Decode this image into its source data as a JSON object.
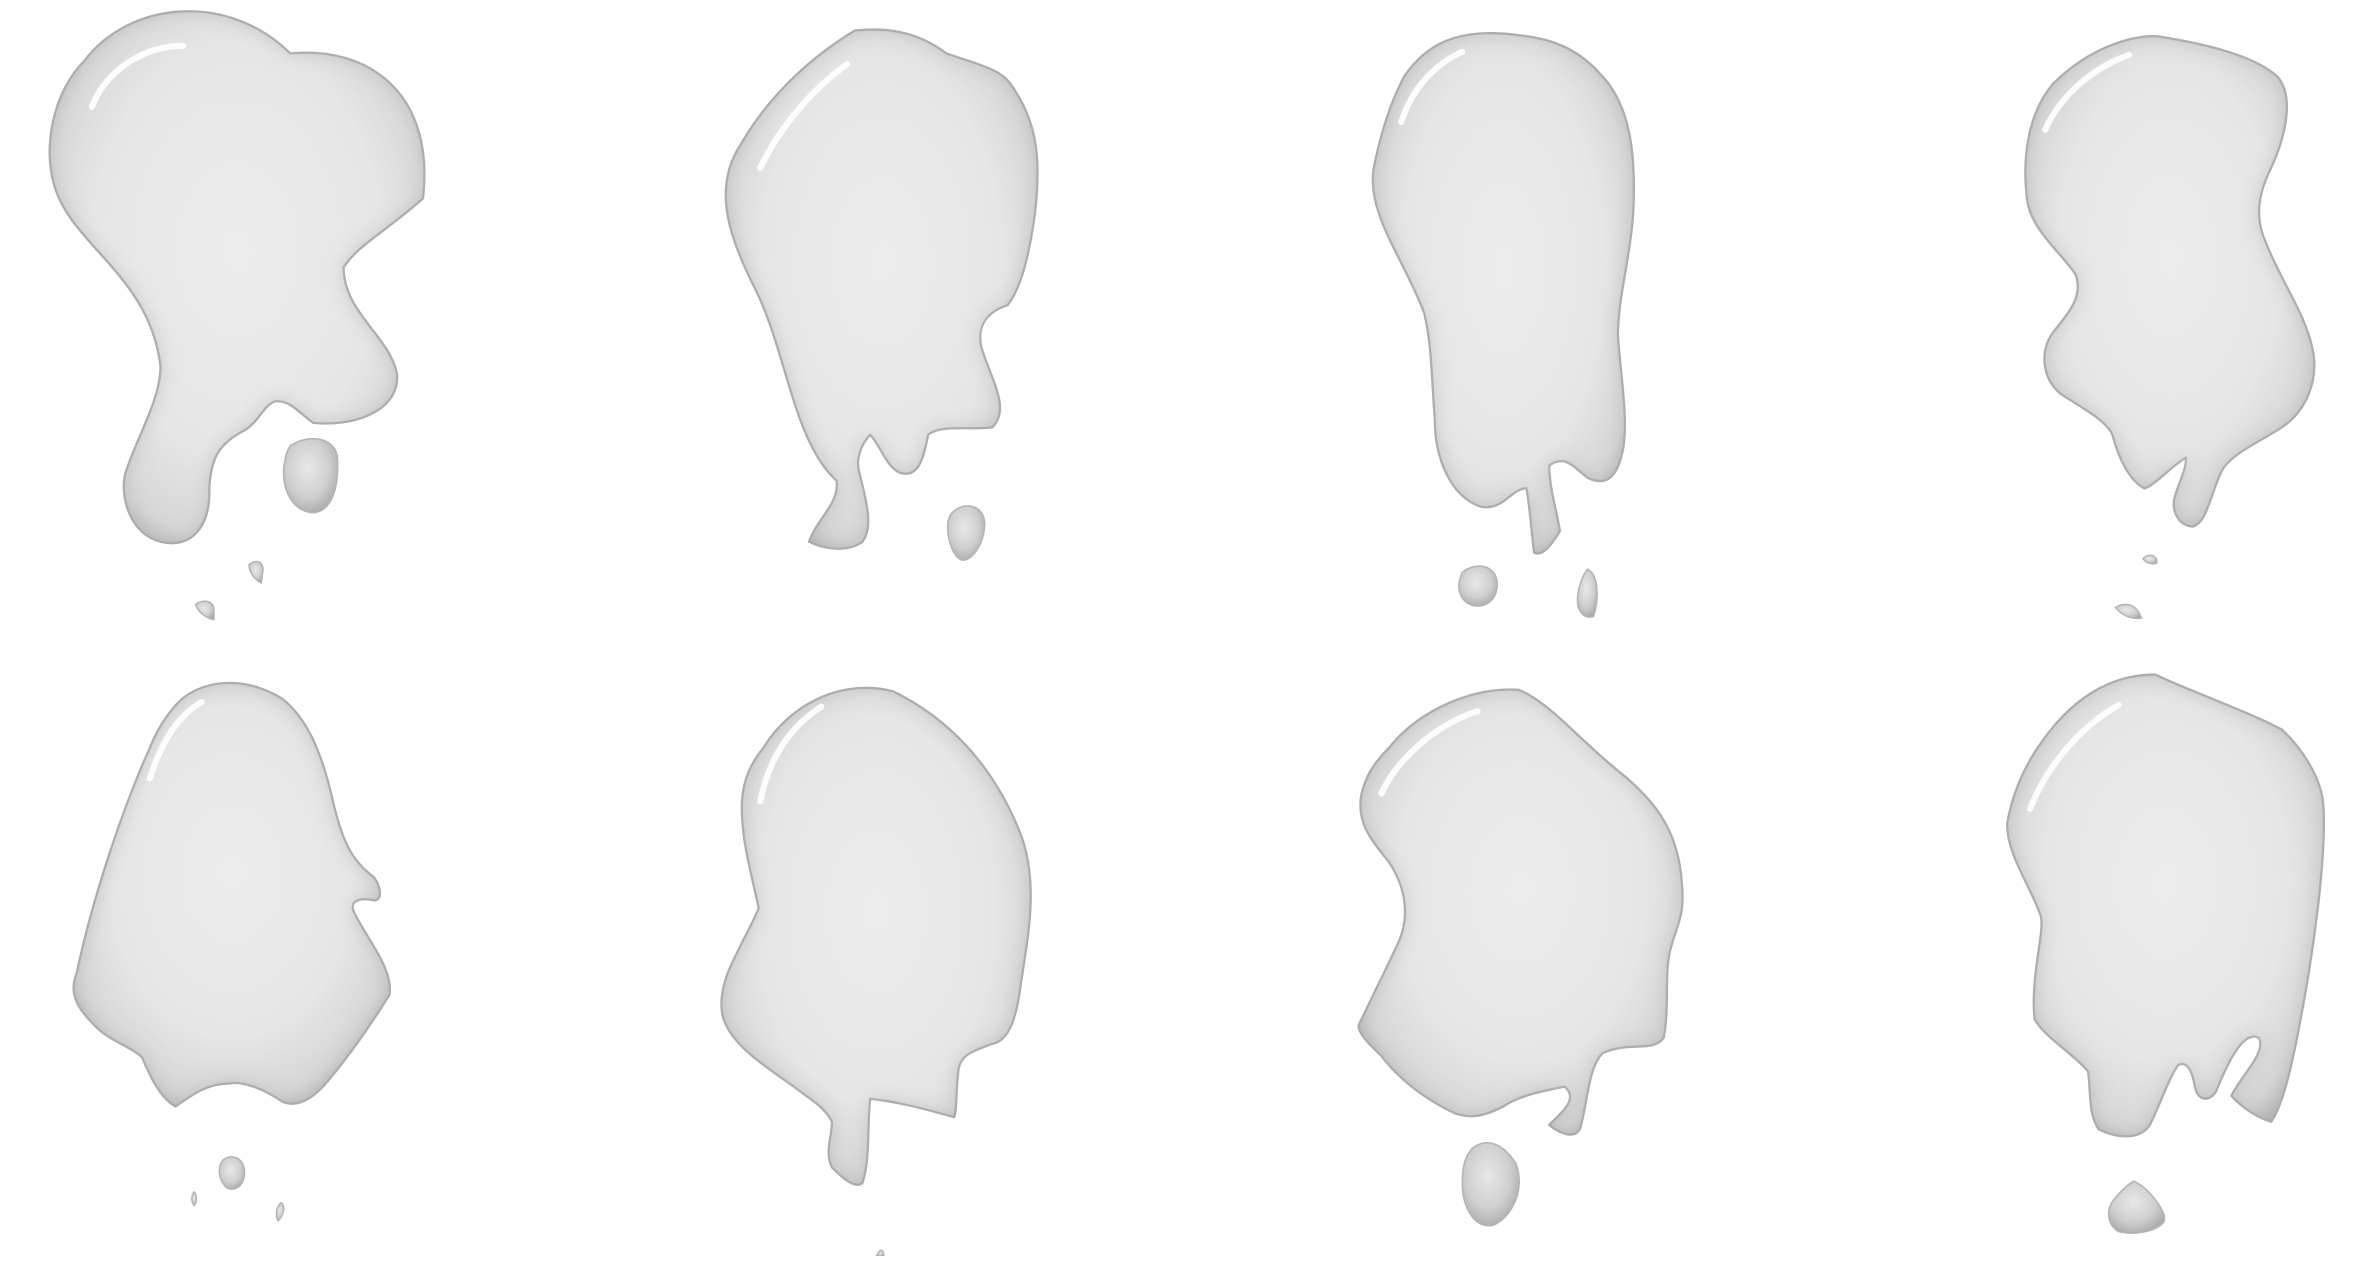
{
  "image": {
    "subject": "blobs",
    "background_color": "#ffffff",
    "blob_fill_light": "#ececec",
    "blob_fill_mid": "#d4d4d4",
    "blob_edge": "#a9a9a9",
    "highlight_color": "#ffffff",
    "grid": {
      "rows": 2,
      "columns": 4
    },
    "items": [
      {
        "name": "splat-1"
      },
      {
        "name": "splat-2"
      },
      {
        "name": "splat-3"
      },
      {
        "name": "splat-4"
      },
      {
        "name": "splat-5"
      },
      {
        "name": "splat-6"
      },
      {
        "name": "splat-7"
      },
      {
        "name": "splat-8"
      }
    ]
  }
}
